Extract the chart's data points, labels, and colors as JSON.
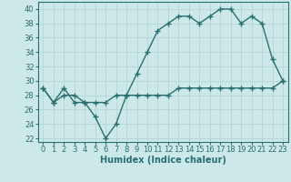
{
  "xlabel": "Humidex (Indice chaleur)",
  "ylabel": "",
  "xlim": [
    -0.5,
    23.5
  ],
  "ylim": [
    21.5,
    41.0
  ],
  "yticks": [
    22,
    24,
    26,
    28,
    30,
    32,
    34,
    36,
    38,
    40
  ],
  "xticks": [
    0,
    1,
    2,
    3,
    4,
    5,
    6,
    7,
    8,
    9,
    10,
    11,
    12,
    13,
    14,
    15,
    16,
    17,
    18,
    19,
    20,
    21,
    22,
    23
  ],
  "line1_x": [
    0,
    1,
    2,
    3,
    4,
    5,
    6,
    7,
    8,
    9,
    10,
    11,
    12,
    13,
    14,
    15,
    16,
    17,
    18,
    19,
    20,
    21,
    22,
    23
  ],
  "line1_y": [
    29,
    27,
    29,
    27,
    27,
    25,
    22,
    24,
    28,
    31,
    34,
    37,
    38,
    39,
    39,
    38,
    39,
    40,
    40,
    38,
    39,
    38,
    33,
    30
  ],
  "line2_x": [
    0,
    1,
    2,
    3,
    4,
    5,
    6,
    7,
    8,
    9,
    10,
    11,
    12,
    13,
    14,
    15,
    16,
    17,
    18,
    19,
    20,
    21,
    22,
    23
  ],
  "line2_y": [
    29,
    27,
    28,
    28,
    27,
    27,
    27,
    28,
    28,
    28,
    28,
    28,
    28,
    29,
    29,
    29,
    29,
    29,
    29,
    29,
    29,
    29,
    29,
    30
  ],
  "line_color": "#2a7070",
  "bg_color": "#cce8e8",
  "grid_color": "#b8d8d8",
  "marker": "+",
  "markersize": 4,
  "markeredgewidth": 1.0,
  "linewidth": 1.0,
  "xlabel_fontsize": 7,
  "tick_fontsize": 6
}
